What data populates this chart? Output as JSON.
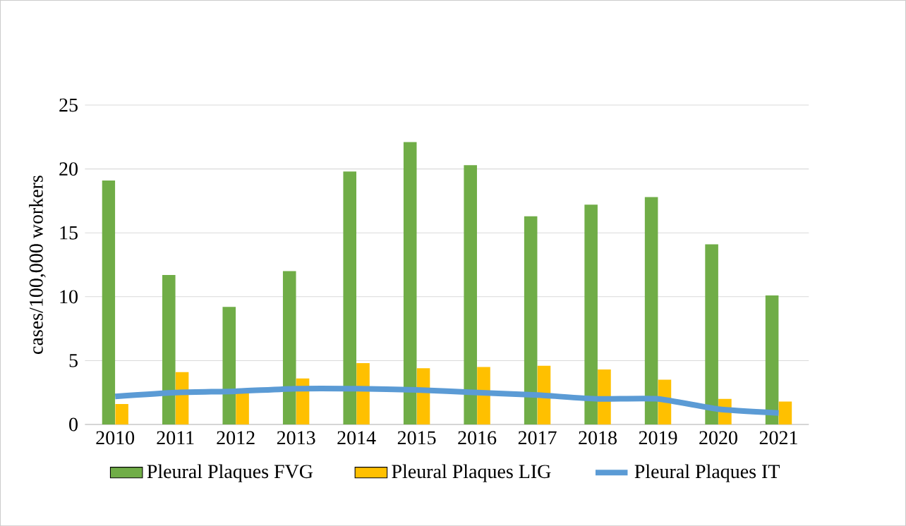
{
  "chart_data": {
    "type": "bar",
    "ylabel": "cases/100,000 workers",
    "categories": [
      "2010",
      "2011",
      "2012",
      "2013",
      "2014",
      "2015",
      "2016",
      "2017",
      "2018",
      "2019",
      "2020",
      "2021"
    ],
    "series": [
      {
        "name": "Pleural Plaques FVG",
        "color": "#70ad47",
        "values": [
          19.1,
          11.7,
          9.2,
          12.0,
          19.8,
          22.1,
          20.3,
          16.3,
          17.2,
          17.8,
          14.1,
          10.1
        ]
      },
      {
        "name": "Pleural Plaques LIG",
        "color": "#ffc000",
        "values": [
          1.6,
          4.1,
          2.5,
          3.6,
          4.8,
          4.4,
          4.5,
          4.6,
          4.3,
          3.5,
          2.0,
          1.8
        ]
      },
      {
        "name": "Pleural Plaques IT",
        "color": "#5b9bd5",
        "type": "line",
        "values": [
          2.2,
          2.5,
          2.6,
          2.8,
          2.8,
          2.7,
          2.5,
          2.3,
          2.0,
          2.0,
          1.2,
          0.9
        ]
      }
    ],
    "ylim": [
      0,
      25
    ],
    "yticks": [
      0,
      5,
      10,
      15,
      20,
      25
    ],
    "grid": "y",
    "legend": "bottom"
  }
}
